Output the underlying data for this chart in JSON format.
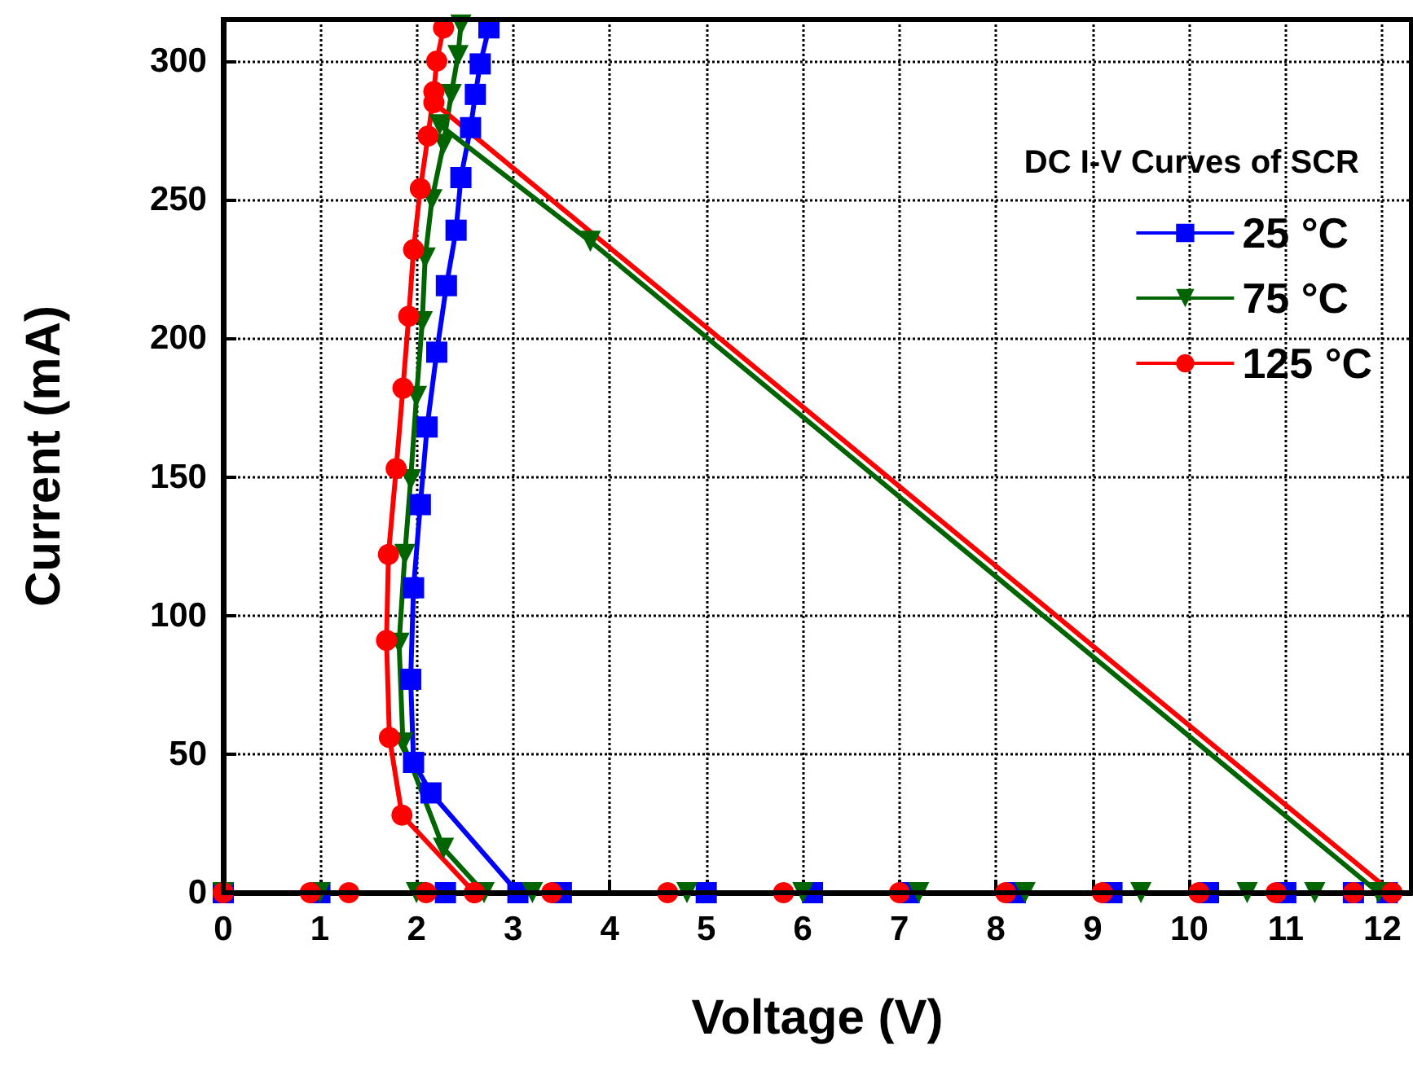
{
  "chart_data": {
    "type": "line",
    "xlabel": "Voltage (V)",
    "ylabel": "Current (mA)",
    "legend_title": "DC I-V Curves of SCR",
    "legend": "top right",
    "grid": true,
    "xlim": [
      0,
      12.3
    ],
    "ylim": [
      0,
      315
    ],
    "xticks": [
      0,
      1,
      2,
      3,
      4,
      5,
      6,
      7,
      8,
      9,
      10,
      11,
      12
    ],
    "yticks": [
      0,
      50,
      100,
      150,
      200,
      250,
      300
    ],
    "series": [
      {
        "name": "25 °C",
        "color": "#0000ff",
        "marker": "square",
        "x": [
          0,
          1,
          2.3,
          3.5,
          5,
          6.1,
          7.1,
          8.2,
          9.2,
          10.2,
          11,
          11.7,
          12.05,
          null,
          3.05,
          2.15,
          1.97,
          1.94,
          1.97,
          2.04,
          2.11,
          2.21,
          2.31,
          2.41,
          2.46,
          2.56,
          2.61,
          2.66,
          2.75
        ],
        "values": [
          0,
          0,
          0,
          0,
          0,
          0,
          0,
          0,
          0,
          0,
          0,
          0,
          0,
          null,
          0,
          36,
          47,
          77,
          110,
          140,
          168,
          195,
          219,
          239,
          258,
          276,
          288,
          299,
          312
        ]
      },
      {
        "name": "75 °C",
        "color": "#006400",
        "marker": "triangle",
        "x": [
          0,
          1,
          2,
          3.2,
          4.8,
          6,
          7.2,
          8.3,
          9.5,
          10.6,
          11.3,
          11.96,
          3.8,
          2.24,
          null,
          2.7,
          2.28,
          1.86,
          1.82,
          1.88,
          1.94,
          2.0,
          2.06,
          2.09,
          2.16,
          2.28,
          2.36,
          2.43,
          2.46
        ],
        "values": [
          0,
          0,
          0,
          0,
          0,
          0,
          0,
          0,
          0,
          0,
          0,
          0,
          235,
          277,
          null,
          0,
          16,
          54,
          90,
          122,
          149,
          179,
          206,
          229,
          250,
          270,
          288,
          302,
          313
        ]
      },
      {
        "name": "125 °C",
        "color": "#ff0000",
        "marker": "circle",
        "x": [
          0,
          0.9,
          1.3,
          2.1,
          2.6,
          3.4,
          4.6,
          5.8,
          7,
          8.1,
          9.1,
          10.1,
          10.9,
          11.7,
          12.1,
          2.18,
          null,
          2.6,
          1.85,
          1.72,
          1.69,
          1.71,
          1.79,
          1.86,
          1.92,
          1.97,
          2.04,
          2.12,
          2.18,
          2.21,
          2.28
        ],
        "values": [
          0,
          0,
          0,
          0,
          0,
          0,
          0,
          0,
          0,
          0,
          0,
          0,
          0,
          0,
          0,
          285,
          null,
          0,
          28,
          56,
          91,
          122,
          153,
          182,
          208,
          232,
          254,
          273,
          289,
          300,
          312
        ]
      }
    ]
  }
}
